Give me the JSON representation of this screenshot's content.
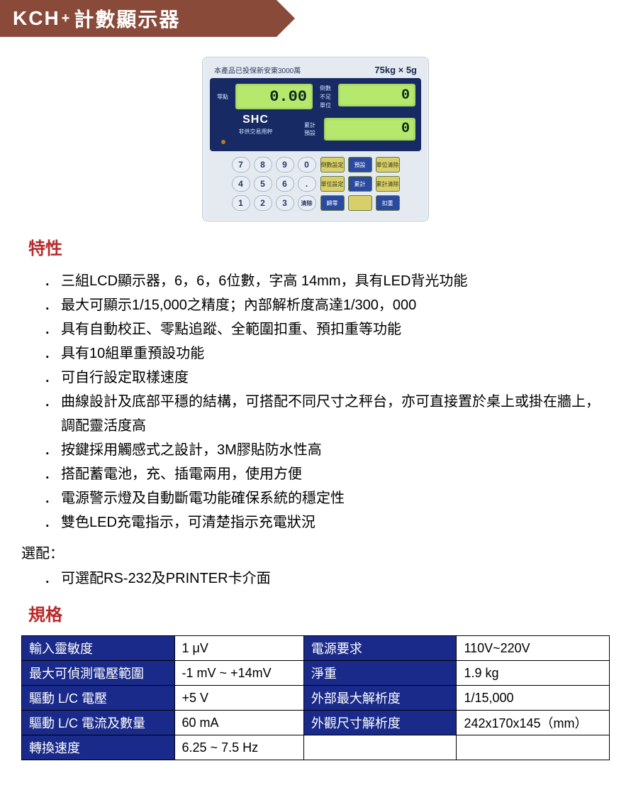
{
  "header": {
    "model": "KCH",
    "plus": "+",
    "title": "計數顯示器"
  },
  "device": {
    "topbar_left": "本產品已投保新安東3000萬",
    "topbar_right": "75kg × 5g",
    "lcd_main": "0.00",
    "lcd_unit": "0",
    "lcd_count": "0",
    "brand": "SHC",
    "brand_sub": "非供交易用秤",
    "keypad_nums": [
      "7",
      "8",
      "9",
      "0",
      "4",
      "5",
      "6",
      ".",
      "1",
      "2",
      "3",
      "清除"
    ],
    "fn_keys": [
      {
        "t": "倒數\n設定",
        "c": "y"
      },
      {
        "t": "預設",
        "c": "b"
      },
      {
        "t": "單位\n清除",
        "c": "y"
      },
      {
        "t": "單位\n設定",
        "c": "y"
      },
      {
        "t": "累計",
        "c": "b"
      },
      {
        "t": "累計\n清除",
        "c": "y"
      },
      {
        "t": "歸零",
        "c": "b"
      },
      {
        "t": "",
        "c": "y"
      },
      {
        "t": "扣重",
        "c": "b"
      }
    ]
  },
  "features_title": "特性",
  "features": [
    "三組LCD顯示器，6，6，6位數，字高 14mm，具有LED背光功能",
    "最大可顯示1/15,000之精度；內部解析度高達1/300，000",
    "具有自動校正、零點追蹤、全範圍扣重、預扣重等功能",
    "具有10組單重預設功能",
    "可自行設定取樣速度",
    "曲線設計及底部平穩的結構，可搭配不同尺寸之秤台，亦可直接置於桌上或掛在牆上，調配靈活度高",
    "按鍵採用觸感式之設計，3M膠貼防水性高",
    "搭配蓄電池，充、插電兩用，使用方便",
    "電源警示燈及自動斷電功能確保系統的穩定性",
    "雙色LED充電指示，可清楚指示充電狀況"
  ],
  "options_label": "選配：",
  "options": [
    "可選配RS-232及PRINTER卡介面"
  ],
  "spec_title": "規格",
  "spec_table": {
    "col_widths": [
      "26%",
      "22%",
      "26%",
      "26%"
    ],
    "rows": [
      [
        {
          "h": "輸入靈敏度"
        },
        {
          "v": "1 μV"
        },
        {
          "h": "電源要求"
        },
        {
          "v": "110V~220V"
        }
      ],
      [
        {
          "h": "最大可偵測電壓範圍"
        },
        {
          "v": "-1 mV ~ +14mV"
        },
        {
          "h": "淨重"
        },
        {
          "v": "1.9 kg"
        }
      ],
      [
        {
          "h": "驅動 L/C 電壓"
        },
        {
          "v": "+5 V"
        },
        {
          "h": "外部最大解析度"
        },
        {
          "v": " 1/15,000"
        }
      ],
      [
        {
          "h": "驅動 L/C 電流及數量"
        },
        {
          "v": "60 mA"
        },
        {
          "h": "外觀尺寸解析度"
        },
        {
          "v": "242x170x145（mm）"
        }
      ],
      [
        {
          "h": "轉換速度"
        },
        {
          "v": "6.25 ~ 7.5 Hz"
        },
        {
          "e": ""
        },
        {
          "e": ""
        }
      ]
    ]
  },
  "colors": {
    "banner": "#8a4a3a",
    "section_title": "#b72a2a",
    "spec_header_bg": "#1a2a8a",
    "device_body": "#e4eaef",
    "display_panel": "#172a63",
    "lcd_bg": "#b7e86e"
  }
}
